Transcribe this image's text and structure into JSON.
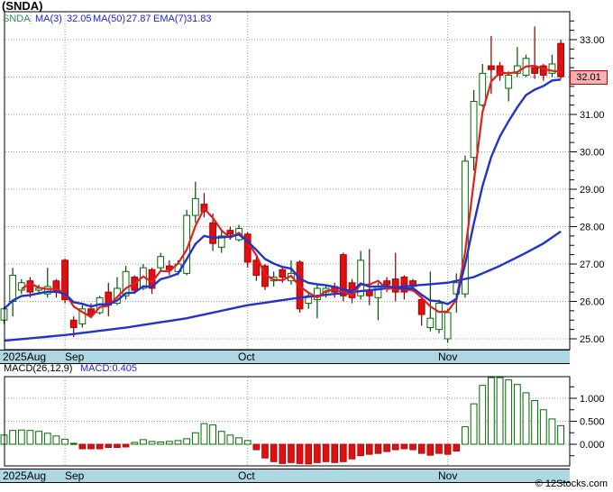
{
  "title": "(SNDA)",
  "legend": {
    "symbol": "SNDA",
    "items": [
      {
        "label": "MA(3)",
        "value": "32.05"
      },
      {
        "label": "MA(50)",
        "value": "27.87"
      },
      {
        "label": "EMA(7)",
        "value": "31.83"
      }
    ]
  },
  "price_label": "32.01",
  "macd_header": {
    "label": "MACD(26,12,9)",
    "value": "MACD:0.405"
  },
  "copyright": "© 12Stocks.com",
  "x_axis": {
    "months": [
      {
        "label": "2025Aug",
        "start_index": 0
      },
      {
        "label": "Sep",
        "start_index": 7
      },
      {
        "label": "Oct",
        "start_index": 28
      },
      {
        "label": "Nov",
        "start_index": 51
      }
    ]
  },
  "colors": {
    "up": "#006b00",
    "up_wick": "#004d00",
    "up_fill": "#ffffff",
    "down": "#aa0000",
    "down_wick": "#7a0000",
    "down_fill": "#dd1111",
    "ma3": "#e02020",
    "ema7": "#2233cc",
    "ma50": "#2233cc",
    "grid": "#999999",
    "border": "#000000",
    "band_bg": "#aed7e4",
    "price_label_bg": "#f6b1b1",
    "price_label_border": "#cc0000",
    "legend_symbol": "#2e8b57",
    "legend_blue": "#2222cc"
  },
  "chart_data": {
    "type": "candlestick",
    "title": "(SNDA)",
    "symbol": "SNDA",
    "last_price": 32.01,
    "overlays": [
      {
        "name": "MA(3)",
        "value": 32.05
      },
      {
        "name": "MA(50)",
        "value": 27.87
      },
      {
        "name": "EMA(7)",
        "value": 31.83
      }
    ],
    "y_axis": {
      "min": 25,
      "max": 33,
      "step": 1
    },
    "candles": [
      [
        25.5,
        25.85,
        25.4,
        25.8
      ],
      [
        26.0,
        26.9,
        25.6,
        26.7
      ],
      [
        26.3,
        26.6,
        26.2,
        26.5
      ],
      [
        26.55,
        26.65,
        26.1,
        26.25
      ],
      [
        26.3,
        26.45,
        26.2,
        26.35
      ],
      [
        26.2,
        26.9,
        26.1,
        26.4
      ],
      [
        26.55,
        26.6,
        26.1,
        26.25
      ],
      [
        27.1,
        27.15,
        25.95,
        26.05
      ],
      [
        25.5,
        25.6,
        25.05,
        25.3
      ],
      [
        25.4,
        25.9,
        25.3,
        25.8
      ],
      [
        25.8,
        25.95,
        25.55,
        25.65
      ],
      [
        25.7,
        26.15,
        25.65,
        26.1
      ],
      [
        26.25,
        26.5,
        25.6,
        25.9
      ],
      [
        25.95,
        26.65,
        25.9,
        26.35
      ],
      [
        26.15,
        26.95,
        26.05,
        26.8
      ],
      [
        26.65,
        26.7,
        26.2,
        26.3
      ],
      [
        26.35,
        27.0,
        26.3,
        26.9
      ],
      [
        26.85,
        26.9,
        26.2,
        26.35
      ],
      [
        26.9,
        27.3,
        26.8,
        27.2
      ],
      [
        26.95,
        27.1,
        26.7,
        26.85
      ],
      [
        26.8,
        27.1,
        26.7,
        27.0
      ],
      [
        26.75,
        28.45,
        26.7,
        28.3
      ],
      [
        28.3,
        29.2,
        28.1,
        28.75
      ],
      [
        28.6,
        28.9,
        28.25,
        28.4
      ],
      [
        28.1,
        28.35,
        27.35,
        27.55
      ],
      [
        27.45,
        27.9,
        27.3,
        27.75
      ],
      [
        27.9,
        28.0,
        27.65,
        27.8
      ],
      [
        27.65,
        28.05,
        27.6,
        27.95
      ],
      [
        27.8,
        27.85,
        26.9,
        27.05
      ],
      [
        27.1,
        27.2,
        26.55,
        26.7
      ],
      [
        26.95,
        27.0,
        26.3,
        26.4
      ],
      [
        26.55,
        26.8,
        26.4,
        26.65
      ],
      [
        26.85,
        26.9,
        26.5,
        26.65
      ],
      [
        26.55,
        27.1,
        26.45,
        26.75
      ],
      [
        27.05,
        27.1,
        25.7,
        25.8
      ],
      [
        25.95,
        26.25,
        25.8,
        26.15
      ],
      [
        26.05,
        26.45,
        25.55,
        26.35
      ],
      [
        26.25,
        26.45,
        26.1,
        26.35
      ],
      [
        26.4,
        26.5,
        26.1,
        26.25
      ],
      [
        27.25,
        27.3,
        26.0,
        26.15
      ],
      [
        26.5,
        26.6,
        25.95,
        26.1
      ],
      [
        26.15,
        27.35,
        26.05,
        27.1
      ],
      [
        26.3,
        27.4,
        25.9,
        26.15
      ],
      [
        26.1,
        26.5,
        25.5,
        26.4
      ],
      [
        26.55,
        26.65,
        26.25,
        26.45
      ],
      [
        26.6,
        27.3,
        26.0,
        26.25
      ],
      [
        26.65,
        26.7,
        26.05,
        26.25
      ],
      [
        26.55,
        26.6,
        26.25,
        26.4
      ],
      [
        26.05,
        26.15,
        25.35,
        25.65
      ],
      [
        25.3,
        26.8,
        25.2,
        25.55
      ],
      [
        25.25,
        26.05,
        25.15,
        25.95
      ],
      [
        25.0,
        25.8,
        24.9,
        25.7
      ],
      [
        26.2,
        26.75,
        25.7,
        26.5
      ],
      [
        26.2,
        29.9,
        26.1,
        29.75
      ],
      [
        29.85,
        31.65,
        29.5,
        31.35
      ],
      [
        31.25,
        32.35,
        31.2,
        32.1
      ],
      [
        32.3,
        33.1,
        31.55,
        32.2
      ],
      [
        32.3,
        32.4,
        31.9,
        32.05
      ],
      [
        31.7,
        32.15,
        31.35,
        32.05
      ],
      [
        32.1,
        32.8,
        32.0,
        32.3
      ],
      [
        32.05,
        32.6,
        32.0,
        32.5
      ],
      [
        32.25,
        33.35,
        31.95,
        32.1
      ],
      [
        32.3,
        32.35,
        31.9,
        32.05
      ],
      [
        32.1,
        32.6,
        32.0,
        32.35
      ],
      [
        32.9,
        33.0,
        31.95,
        32.01
      ]
    ],
    "ma50_anchors": [
      [
        0,
        24.95
      ],
      [
        7,
        25.1
      ],
      [
        14,
        25.3
      ],
      [
        21,
        25.55
      ],
      [
        28,
        25.9
      ],
      [
        34,
        26.1
      ],
      [
        40,
        26.25
      ],
      [
        46,
        26.4
      ],
      [
        51,
        26.5
      ],
      [
        54,
        26.65
      ],
      [
        57,
        26.95
      ],
      [
        60,
        27.3
      ],
      [
        62,
        27.55
      ],
      [
        64,
        27.87
      ]
    ],
    "macd": {
      "type": "bar",
      "label": "MACD(26,12,9)",
      "current": 0.405,
      "y_axis": {
        "ticks": [
          0.0,
          0.5,
          1.0
        ]
      },
      "values": [
        0.2,
        0.3,
        0.31,
        0.3,
        0.28,
        0.24,
        0.18,
        0.11,
        0.02,
        -0.1,
        -0.1,
        -0.1,
        -0.07,
        -0.07,
        -0.06,
        0.04,
        0.1,
        0.06,
        0.05,
        0.06,
        0.08,
        0.12,
        0.25,
        0.45,
        0.42,
        0.28,
        0.2,
        0.14,
        0.08,
        -0.12,
        -0.3,
        -0.38,
        -0.42,
        -0.4,
        -0.42,
        -0.43,
        -0.4,
        -0.38,
        -0.4,
        -0.38,
        -0.32,
        -0.25,
        -0.22,
        -0.2,
        -0.16,
        -0.12,
        -0.1,
        -0.12,
        -0.2,
        -0.24,
        -0.2,
        -0.22,
        -0.15,
        0.38,
        0.88,
        1.28,
        1.45,
        1.45,
        1.4,
        1.3,
        1.12,
        0.95,
        0.75,
        0.55,
        0.405
      ]
    }
  }
}
